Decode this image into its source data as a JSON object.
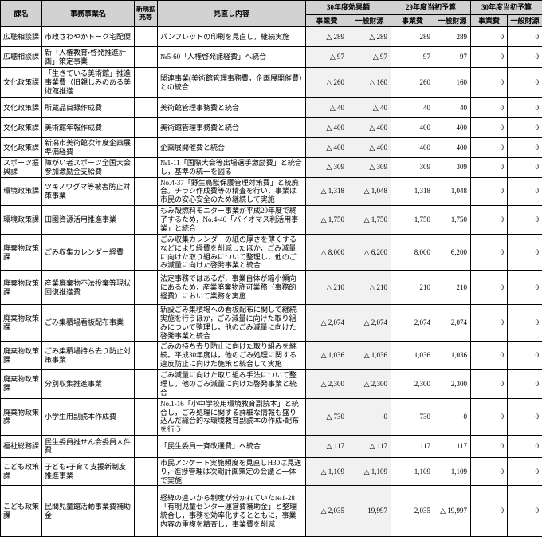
{
  "columns": {
    "kamei": "課名",
    "jigyomei": "事務事業名",
    "shinki": "新規拡充等",
    "minaoshi": "見直し内容",
    "groups": [
      {
        "label": "30年度効果額",
        "sub": [
          "事業費",
          "一般財源"
        ]
      },
      {
        "label": "29年度当初予算",
        "sub": [
          "事業費",
          "一般財源"
        ]
      },
      {
        "label": "30年度当初予算",
        "sub": [
          "事業費",
          "一般財源"
        ]
      }
    ]
  },
  "colors": {
    "header_bg": "#d2d2d2",
    "effect_column_bg": "#f1f1f1",
    "border": "#000000"
  },
  "rows": [
    {
      "ka": "広聴相談課",
      "name": "市政さわやかトーク宅配便",
      "shinki": "",
      "detail": "パンフレットの印刷を見直し，継続実施",
      "values": [
        "△ 289",
        "△ 289",
        "289",
        "289",
        "0",
        "0"
      ]
    },
    {
      "ka": "広聴相談課",
      "name": "新「人権教育・啓発推進計画」策定事業",
      "shinki": "",
      "detail": "№5-60「人権啓発諸経費」へ統合",
      "values": [
        "△ 97",
        "△ 97",
        "97",
        "97",
        "0",
        "0"
      ]
    },
    {
      "ka": "文化政策課",
      "name": "「生きている美術館」推進事業費（旧親しみのある美術館推進",
      "shinki": "",
      "detail": "関連事業(美術館管理事務費，企画展開催費）との統合",
      "values": [
        "△ 260",
        "△ 160",
        "260",
        "160",
        "0",
        "0"
      ]
    },
    {
      "ka": "文化政策課",
      "name": "所蔵品目録作成費",
      "shinki": "",
      "detail": "美術館管理事務費と統合",
      "values": [
        "△ 40",
        "△ 40",
        "40",
        "40",
        "0",
        "0"
      ]
    },
    {
      "ka": "文化政策課",
      "name": "美術館年報作成費",
      "shinki": "",
      "detail": "美術館管理事務費と統合",
      "values": [
        "△ 400",
        "△ 400",
        "400",
        "400",
        "0",
        "0"
      ]
    },
    {
      "ka": "文化政策課",
      "name": "新潟市美術館次年度企画展準備経費",
      "shinki": "",
      "detail": "企画展開催費と統合",
      "values": [
        "△ 400",
        "△ 400",
        "400",
        "400",
        "0",
        "0"
      ]
    },
    {
      "ka": "スポーツ振興課",
      "name": "障がい者スポーツ全国大会参加激励金支給費",
      "shinki": "",
      "detail": "№1-11「国際大会等出場選手激励費」と統合し，基準の統一を図る",
      "values": [
        "△ 309",
        "△ 309",
        "309",
        "309",
        "0",
        "0"
      ]
    },
    {
      "ka": "環境政策課",
      "name": "ツキノワグマ等被害防止対策事業",
      "shinki": "",
      "detail": "No.4-37「野生鳥獣保護管理対策費」と統廃合。チラシ作成費等の精査を行い，事業は市民の安心安全のため継続して実施",
      "values": [
        "△ 1,318",
        "△ 1,048",
        "1,318",
        "1,048",
        "0",
        "0"
      ]
    },
    {
      "ka": "環境政策課",
      "name": "田園資源活用推進事業",
      "shinki": "",
      "detail": "もみ殻燃料モニター事業が平成29年度で終了するため，No.4-40「バイオマス利活用事業」と統合",
      "values": [
        "△ 1,750",
        "△ 1,750",
        "1,750",
        "1,750",
        "0",
        "0"
      ]
    },
    {
      "ka": "廃棄物政策課",
      "name": "ごみ収集カレンダー経費",
      "shinki": "",
      "detail": "ごみ収集カレンダーの紙の厚さを薄くするなどにより経費を削減したほか，ごみ減量に向けた取り組みについて整理し，他のごみ減量に向けた啓発事業と統合",
      "values": [
        "△ 8,000",
        "△ 6,200",
        "8,000",
        "6,200",
        "0",
        "0"
      ]
    },
    {
      "ka": "廃棄物政策課",
      "name": "産業廃棄物不法投棄等現状回復推進費",
      "shinki": "",
      "detail": "法定事務ではあるが，事業自体が縮小傾向にあるため，産業廃棄物許可業務（事務的経費）において業務を実施",
      "values": [
        "△ 210",
        "△ 210",
        "210",
        "210",
        "0",
        "0"
      ]
    },
    {
      "ka": "廃棄物政策課",
      "name": "ごみ集積場看板配布事業",
      "shinki": "",
      "detail": "新設ごみ集積場への看板配布に関して継続実施を行うほか，ごみ減量に向けた取り組みについて整理し，他のごみ減量に向けた啓発事業と統合",
      "values": [
        "△ 2,074",
        "△ 2,074",
        "2,074",
        "2,074",
        "0",
        "0"
      ]
    },
    {
      "ka": "廃棄物政策課",
      "name": "ごみ集積場持ち去り防止対策事業",
      "shinki": "",
      "detail": "ごみの持ち去り防止に向けた取り組みを継続。平成30年度は，他のごみ処理に関する違反防止に向けた施策と統合して実施",
      "values": [
        "△ 1,036",
        "△ 1,036",
        "1,036",
        "1,036",
        "0",
        "0"
      ]
    },
    {
      "ka": "廃棄物政策課",
      "name": "分別収集推進事業",
      "shinki": "",
      "detail": "ごみ減量に向けた取り組み手法について整理し，他のごみ減量に向けた啓発事業と統合",
      "values": [
        "△ 2,300",
        "△ 2,300",
        "2,300",
        "2,300",
        "0",
        "0"
      ]
    },
    {
      "ka": "廃棄物政策課",
      "name": "小学生用副読本作成費",
      "shinki": "",
      "detail": "No.1-16「小中学校用環境教育副読本」と統合し，ごみ処理に関する詳細な情報も盛り込んだ総合的な環境教育副読本の作成・配布を行う",
      "values": [
        "△ 730",
        "0",
        "730",
        "0",
        "0",
        "0"
      ]
    },
    {
      "ka": "福祉総務課",
      "name": "民生委員推せん会委員人件費",
      "shinki": "",
      "detail": "「民生委員一斉改選費」へ統合",
      "values": [
        "△ 117",
        "△ 117",
        "117",
        "117",
        "0",
        "0"
      ]
    },
    {
      "ka": "こども政策課",
      "name": "子ども・子育て支援新制度推進事業",
      "shinki": "",
      "detail": "市民アンケート実施頻度を見直しH30は見送り，進捗管理は次期計画策定の会議と一体で実施",
      "values": [
        "△ 1,109",
        "△ 1,109",
        "1,109",
        "1,109",
        "0",
        "0"
      ]
    },
    {
      "ka": "こども政策課",
      "name": "民間児童館活動事業費補助金",
      "shinki": "",
      "detail": "経緯の違いから制度が分かれていた№1-28「有明児童センター運営費補助金」と整理統合し，事務を効率化するとともに，事業内容の重複を精査し，事業費を削減",
      "values": [
        "△ 2,035",
        "19,997",
        "2,035",
        "△ 19,997",
        "0",
        "0"
      ]
    }
  ]
}
